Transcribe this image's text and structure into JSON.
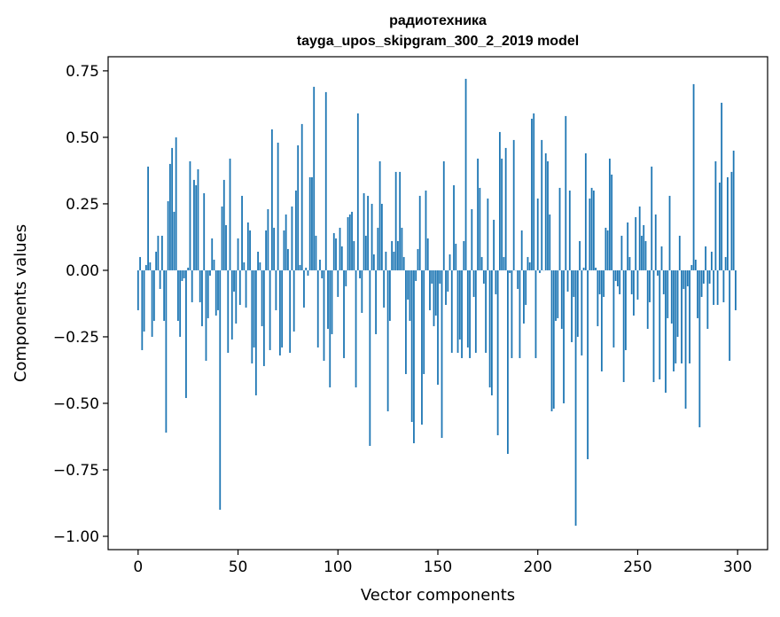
{
  "chart_data": {
    "type": "bar",
    "title": "радиотехника",
    "subtitle": "tayga_upos_skipgram_300_2_2019 model",
    "xlabel": "Vector components",
    "ylabel": "Components values",
    "xlim": [
      -15,
      315
    ],
    "ylim": [
      -1.05,
      0.803
    ],
    "xticks": [
      0,
      50,
      100,
      150,
      200,
      250,
      300
    ],
    "yticks": [
      -1.0,
      -0.75,
      -0.5,
      -0.25,
      0.0,
      0.25,
      0.5,
      0.75
    ],
    "ytick_labels": [
      "−1.00",
      "−0.75",
      "−0.50",
      "−0.25",
      "0.00",
      "0.25",
      "0.50",
      "0.75"
    ],
    "grid": false,
    "bar_color": "#1f77b4",
    "values": [
      -0.15,
      0.05,
      -0.3,
      -0.23,
      0.02,
      0.39,
      0.03,
      -0.25,
      -0.19,
      0.07,
      0.13,
      -0.07,
      0.13,
      -0.19,
      -0.61,
      0.26,
      0.4,
      0.46,
      0.22,
      0.5,
      -0.19,
      -0.25,
      -0.04,
      -0.03,
      -0.48,
      0.01,
      0.41,
      -0.12,
      0.34,
      0.32,
      0.38,
      -0.12,
      -0.21,
      0.29,
      -0.34,
      -0.18,
      -0.02,
      0.12,
      0.04,
      -0.17,
      -0.15,
      -0.9,
      0.24,
      0.34,
      0.17,
      -0.31,
      0.42,
      -0.26,
      -0.08,
      -0.2,
      0.12,
      -0.13,
      0.28,
      0.03,
      -0.14,
      0.18,
      0.15,
      -0.35,
      -0.29,
      -0.47,
      0.07,
      0.03,
      -0.21,
      -0.36,
      0.15,
      0.23,
      -0.3,
      0.53,
      0.16,
      -0.15,
      0.48,
      -0.32,
      -0.29,
      0.15,
      0.21,
      0.08,
      -0.31,
      0.24,
      -0.23,
      0.3,
      0.47,
      0.02,
      0.55,
      -0.14,
      0.01,
      -0.02,
      0.35,
      0.35,
      0.69,
      0.13,
      -0.29,
      0.04,
      -0.03,
      -0.34,
      0.67,
      -0.22,
      -0.44,
      -0.24,
      0.14,
      0.12,
      -0.1,
      0.16,
      0.09,
      -0.33,
      -0.06,
      0.2,
      0.21,
      0.22,
      0.11,
      -0.44,
      0.59,
      -0.03,
      -0.16,
      0.29,
      0.13,
      0.28,
      -0.66,
      0.25,
      0.06,
      -0.24,
      0.16,
      0.41,
      0.25,
      -0.14,
      0.07,
      -0.53,
      -0.19,
      0.11,
      0.07,
      0.37,
      0.11,
      0.37,
      0.16,
      0.05,
      -0.39,
      -0.11,
      -0.19,
      -0.57,
      -0.65,
      -0.04,
      0.08,
      0.28,
      -0.58,
      -0.39,
      0.3,
      0.12,
      -0.15,
      -0.05,
      -0.21,
      -0.17,
      -0.43,
      -0.05,
      -0.63,
      0.41,
      -0.13,
      -0.08,
      0.06,
      -0.31,
      0.32,
      0.1,
      -0.31,
      -0.26,
      -0.33,
      0.11,
      0.72,
      -0.29,
      -0.33,
      0.23,
      -0.1,
      -0.31,
      0.42,
      0.31,
      0.05,
      -0.05,
      -0.31,
      0.27,
      -0.44,
      -0.47,
      0.19,
      -0.09,
      -0.62,
      0.52,
      0.42,
      0.05,
      0.46,
      -0.69,
      -0.01,
      -0.33,
      0.49,
      0.0,
      -0.07,
      -0.33,
      0.15,
      -0.2,
      -0.13,
      0.05,
      0.03,
      0.57,
      0.59,
      -0.33,
      0.27,
      -0.01,
      0.49,
      0.0,
      0.44,
      0.41,
      0.21,
      -0.53,
      -0.52,
      -0.19,
      -0.18,
      0.31,
      -0.22,
      -0.5,
      0.58,
      -0.08,
      0.3,
      -0.27,
      -0.1,
      -0.96,
      -0.25,
      0.11,
      -0.32,
      0.01,
      0.44,
      -0.71,
      0.27,
      0.31,
      0.3,
      0.01,
      -0.21,
      -0.09,
      -0.38,
      -0.1,
      0.16,
      0.15,
      0.42,
      0.36,
      -0.29,
      -0.04,
      -0.06,
      -0.09,
      0.13,
      -0.42,
      -0.3,
      0.18,
      0.05,
      -0.09,
      -0.17,
      0.2,
      -0.11,
      0.24,
      0.13,
      0.17,
      0.11,
      -0.22,
      -0.12,
      0.39,
      -0.42,
      0.21,
      -0.02,
      -0.41,
      0.09,
      -0.09,
      -0.46,
      -0.18,
      0.28,
      -0.2,
      -0.38,
      -0.35,
      -0.25,
      0.13,
      -0.35,
      -0.07,
      -0.52,
      -0.06,
      -0.35,
      0.02,
      0.7,
      0.04,
      -0.18,
      -0.59,
      -0.1,
      -0.05,
      0.09,
      -0.22,
      -0.05,
      0.07,
      -0.13,
      0.41,
      -0.13,
      0.33,
      0.63,
      -0.12,
      0.05,
      0.35,
      -0.34,
      0.37,
      0.45,
      -0.15
    ]
  }
}
